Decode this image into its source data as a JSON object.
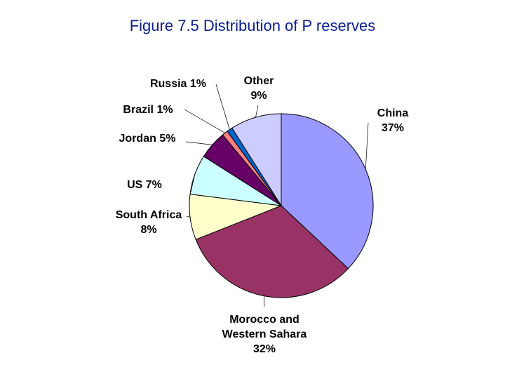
{
  "title": "Figure 7.5 Distribution of P reserves",
  "chart_data": {
    "type": "pie",
    "title": "Figure 7.5 Distribution of P reserves",
    "start": "top, clockwise",
    "slices": [
      {
        "name": "China",
        "value": 37,
        "label_lines": [
          "China",
          "37%"
        ],
        "color": "#9999ff"
      },
      {
        "name": "Morocco and Western Sahara",
        "value": 32,
        "label_lines": [
          "Morocco and",
          "Western Sahara",
          "32%"
        ],
        "color": "#993366"
      },
      {
        "name": "South Africa",
        "value": 8,
        "label_lines": [
          "South Africa",
          "8%"
        ],
        "color": "#ffffcc"
      },
      {
        "name": "US",
        "value": 7,
        "label_lines": [
          "US  7%"
        ],
        "color": "#ccffff"
      },
      {
        "name": "Jordan",
        "value": 5,
        "label_lines": [
          "Jordan  5%"
        ],
        "color": "#660066"
      },
      {
        "name": "Brazil",
        "value": 1,
        "label_lines": [
          "Brazil  1%"
        ],
        "color": "#ff8080"
      },
      {
        "name": "Russia",
        "value": 1,
        "label_lines": [
          "Russia  1%"
        ],
        "color": "#0066cc"
      },
      {
        "name": "Other",
        "value": 9,
        "label_lines": [
          "Other",
          "9%"
        ],
        "color": "#ccccff"
      }
    ]
  }
}
